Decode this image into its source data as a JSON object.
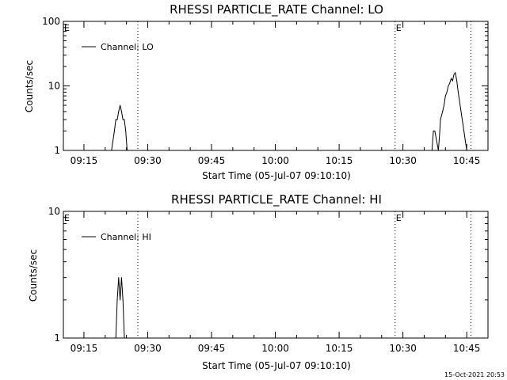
{
  "chart_data": [
    {
      "type": "line",
      "title": "RHESSI PARTICLE_RATE Channel: LO",
      "xlabel": "Start Time (05-Jul-07 09:10:10)",
      "ylabel": "Counts/sec",
      "yscale": "log",
      "ylim": [
        1,
        100
      ],
      "ytick_labels": [
        "1",
        "10",
        "100"
      ],
      "ytick_values": [
        1,
        10,
        100
      ],
      "xlim": [
        "09:10:10",
        "10:50:00"
      ],
      "xtick_labels": [
        "09:15",
        "09:30",
        "09:45",
        "10:00",
        "10:15",
        "10:30",
        "10:45"
      ],
      "xtick_values": [
        "09:15",
        "09:30",
        "09:45",
        "10:00",
        "10:15",
        "10:30",
        "10:45"
      ],
      "legend": "top-left",
      "grid": false,
      "markers": [
        {
          "label": "E",
          "time": "09:10:10"
        },
        {
          "label": "E",
          "time": "10:28:10"
        }
      ],
      "vertical_lines": [
        "09:27:40",
        "10:28:10",
        "10:46:00"
      ],
      "series": [
        {
          "name": "Channel: LO",
          "x": [
            "09:20:20",
            "09:21:30",
            "09:22:10",
            "09:22:30",
            "09:22:50",
            "09:23:10",
            "09:23:30",
            "09:23:50",
            "09:24:10",
            "09:24:30",
            "09:24:50",
            "09:25:10",
            "09:26:10",
            "10:36:50",
            "10:37:10",
            "10:37:30",
            "10:38:20",
            "10:38:40",
            "10:38:50",
            "10:39:20",
            "10:39:40",
            "10:40:00",
            "10:40:20",
            "10:40:40",
            "10:41:00",
            "10:41:20",
            "10:41:40",
            "10:42:00",
            "10:42:20",
            "10:42:40",
            "10:43:00",
            "10:43:40",
            "10:44:20",
            "10:45:00"
          ],
          "y": [
            1,
            1,
            2,
            3,
            3,
            4,
            5,
            4,
            3,
            3,
            2,
            1,
            1,
            1,
            2,
            2,
            1,
            2,
            3,
            4,
            5,
            7,
            8,
            10,
            11,
            13,
            12,
            15,
            16,
            12,
            8,
            4,
            2,
            1
          ]
        }
      ]
    },
    {
      "type": "line",
      "title": "RHESSI PARTICLE_RATE Channel: HI",
      "xlabel": "Start Time (05-Jul-07 09:10:10)",
      "ylabel": "Counts/sec",
      "yscale": "log",
      "ylim": [
        1,
        10
      ],
      "ytick_labels": [
        "1",
        "10"
      ],
      "ytick_values": [
        1,
        10
      ],
      "xlim": [
        "09:10:10",
        "10:50:00"
      ],
      "xtick_labels": [
        "09:15",
        "09:30",
        "09:45",
        "10:00",
        "10:15",
        "10:30",
        "10:45"
      ],
      "xtick_values": [
        "09:15",
        "09:30",
        "09:45",
        "10:00",
        "10:15",
        "10:30",
        "10:45"
      ],
      "legend": "top-left",
      "grid": false,
      "markers": [
        {
          "label": "E",
          "time": "09:10:10"
        },
        {
          "label": "E",
          "time": "10:28:10"
        }
      ],
      "vertical_lines": [
        "09:27:40",
        "10:28:10",
        "10:46:00"
      ],
      "series": [
        {
          "name": "Channel: HI",
          "x": [
            "09:22:30",
            "09:22:50",
            "09:23:10",
            "09:23:30",
            "09:23:50",
            "09:24:10",
            "09:24:30",
            "09:24:50"
          ],
          "y": [
            1,
            2,
            3,
            2,
            3,
            2,
            1,
            1
          ]
        }
      ]
    }
  ],
  "footer": {
    "timestamp": "15-Oct-2021 20:53"
  }
}
